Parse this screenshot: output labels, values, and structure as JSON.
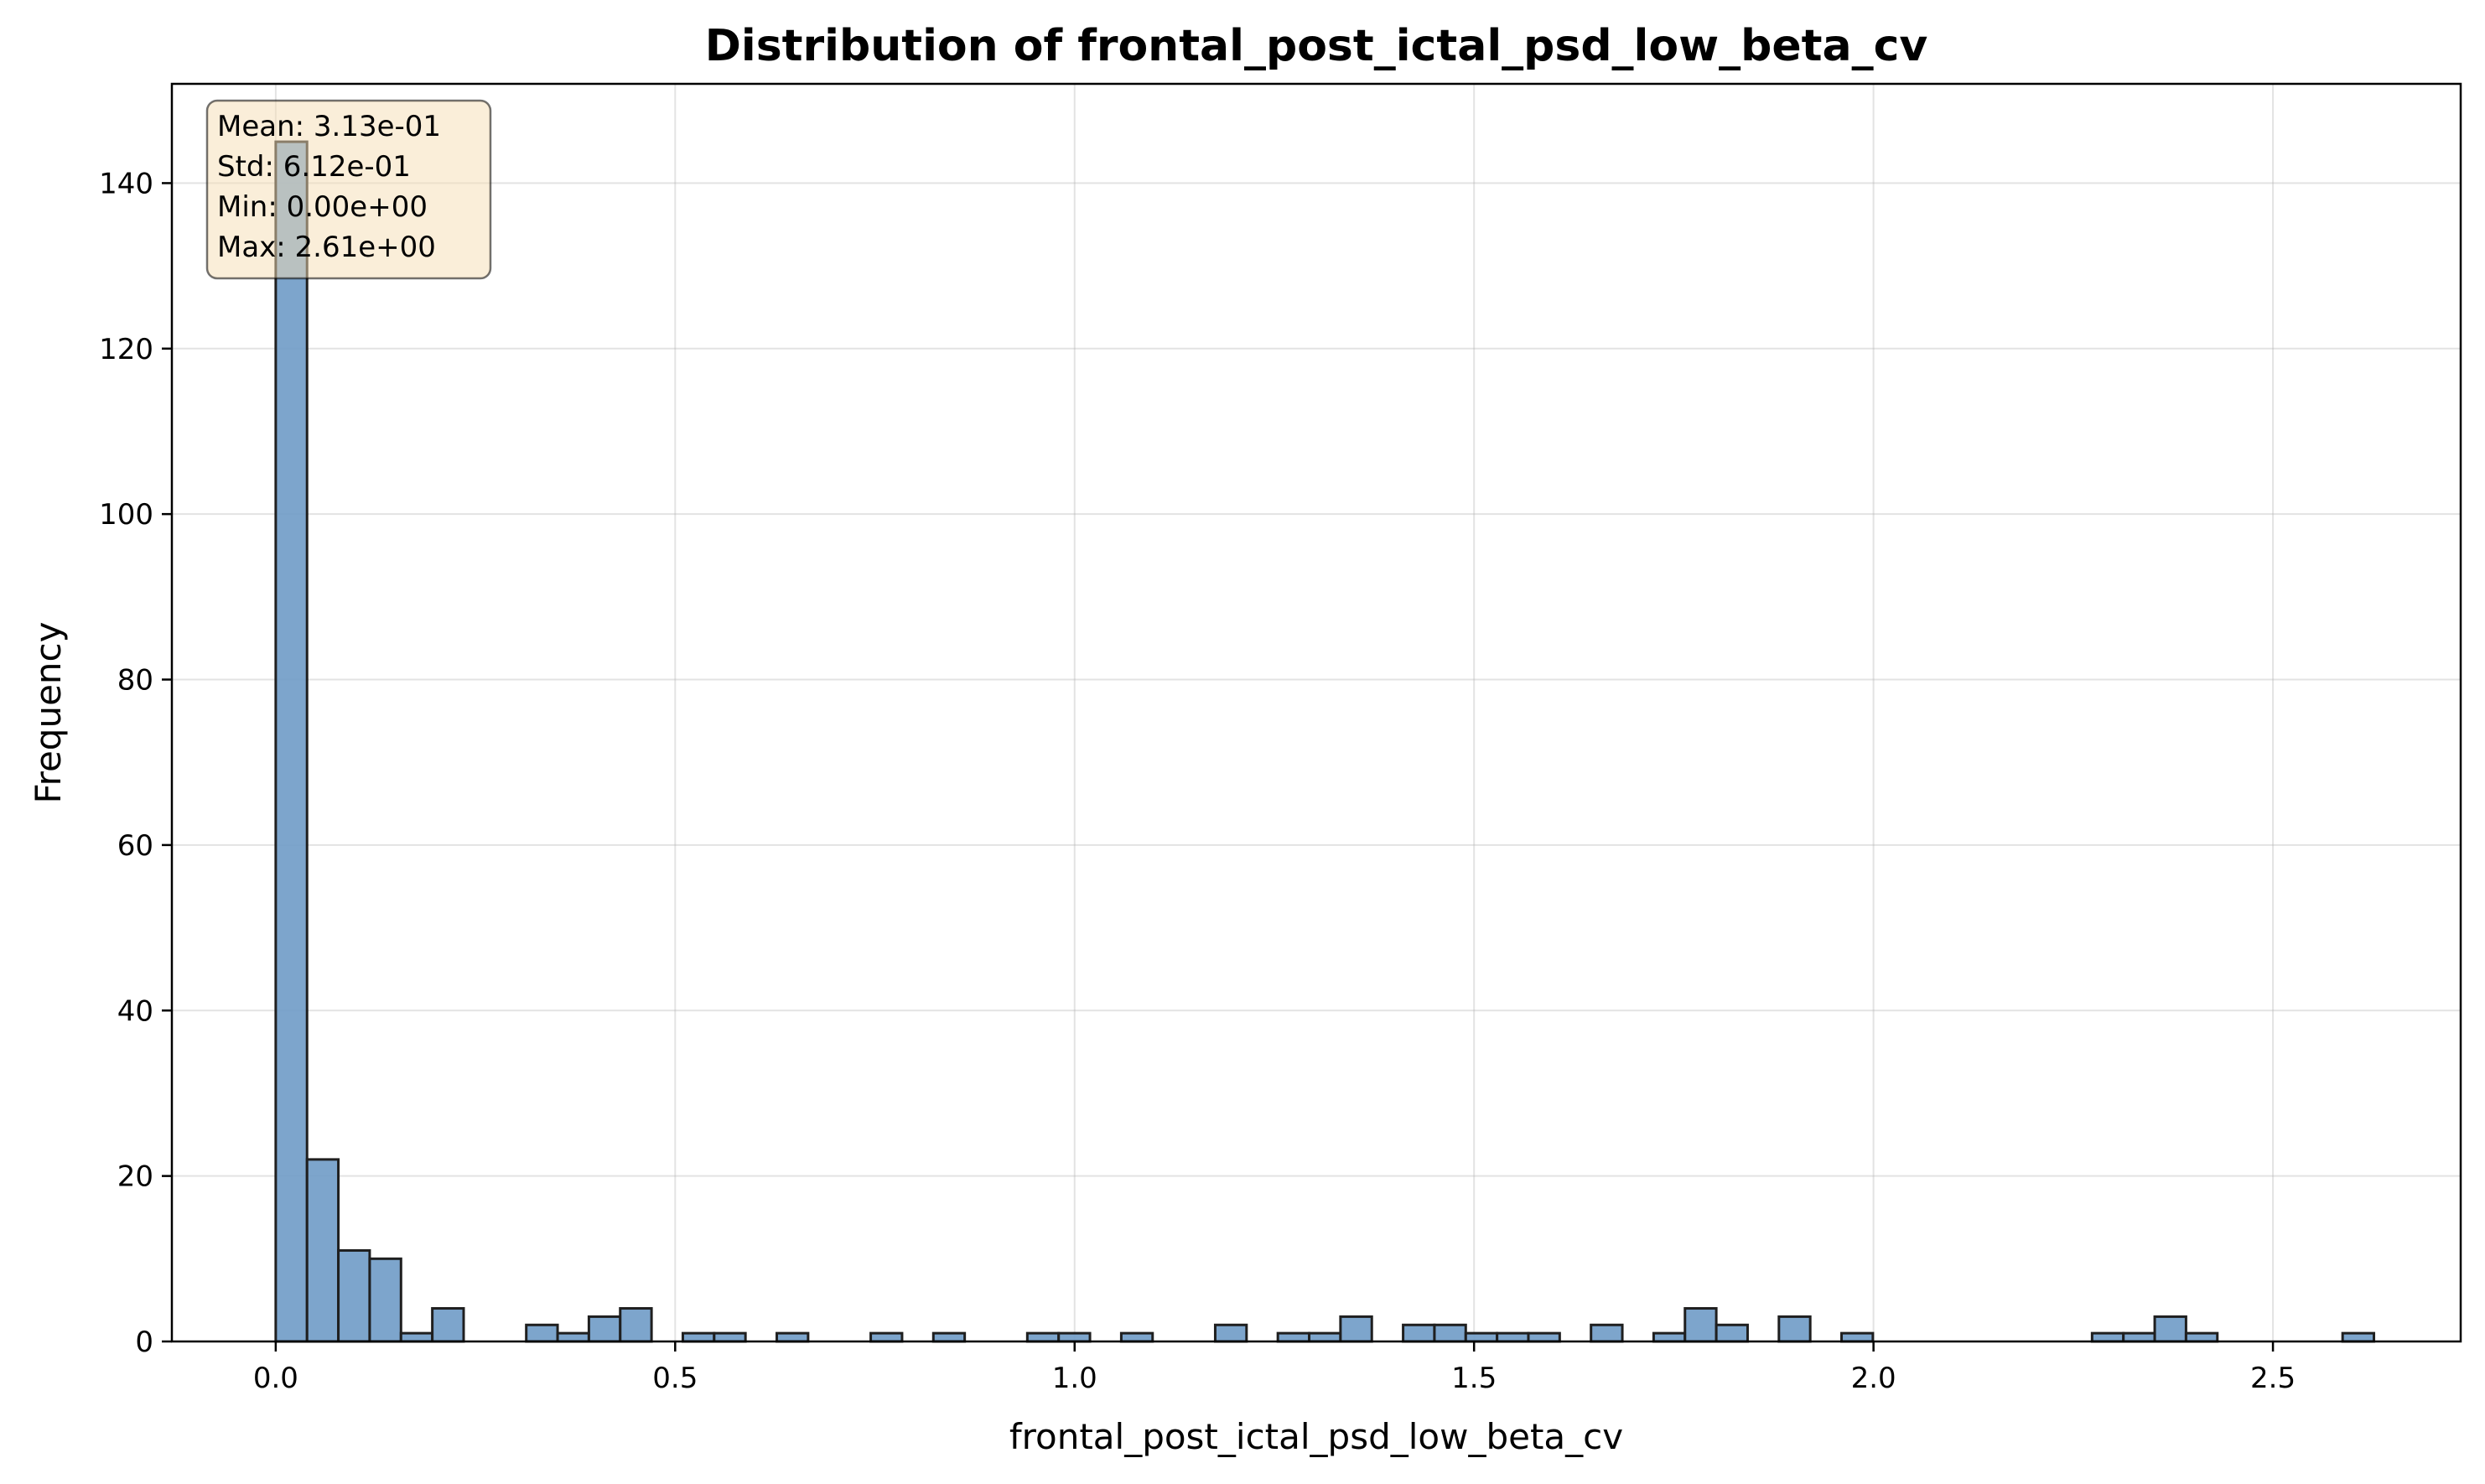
{
  "chart_data": {
    "type": "bar",
    "title": "Distribution of frontal_post_ictal_psd_low_beta_cv",
    "xlabel": "frontal_post_ictal_psd_low_beta_cv",
    "ylabel": "Frequency",
    "xlim": [
      -0.13,
      2.735
    ],
    "ylim": [
      0,
      152
    ],
    "xticks": [
      0.0,
      0.5,
      1.0,
      1.5,
      2.0,
      2.5
    ],
    "xtick_labels": [
      "0.0",
      "0.5",
      "1.0",
      "1.5",
      "2.0",
      "2.5"
    ],
    "yticks": [
      0,
      20,
      40,
      60,
      80,
      100,
      120,
      140
    ],
    "ytick_labels": [
      "0",
      "20",
      "40",
      "60",
      "80",
      "100",
      "120",
      "140"
    ],
    "grid": true,
    "bin_start": 0.0,
    "bin_width": 0.0392,
    "values": [
      145,
      22,
      11,
      10,
      1,
      4,
      0,
      0,
      2,
      1,
      3,
      4,
      0,
      1,
      1,
      0,
      1,
      0,
      0,
      1,
      0,
      1,
      0,
      0,
      1,
      1,
      0,
      1,
      0,
      0,
      2,
      0,
      1,
      1,
      3,
      0,
      2,
      2,
      1,
      1,
      1,
      0,
      2,
      0,
      1,
      4,
      2,
      0,
      3,
      0,
      1,
      0,
      0,
      0,
      0,
      0,
      0,
      0,
      1,
      1,
      3,
      1,
      0,
      0,
      0,
      0,
      1
    ],
    "bar_color": "#6f9bc7",
    "edge_color": "#1f1f1f",
    "stats_box": {
      "lines": [
        "Mean: 3.13e-01",
        "Std: 6.12e-01",
        "Min: 0.00e+00",
        "Max: 2.61e+00"
      ],
      "background": "#f5deb3",
      "placement": "top-left"
    }
  }
}
